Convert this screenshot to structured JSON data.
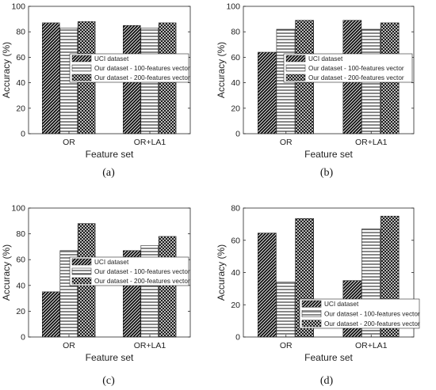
{
  "chart_data": [
    {
      "type": "bar",
      "caption": "(a)",
      "categories": [
        "OR",
        "OR+LA1"
      ],
      "series": [
        {
          "name": "UCI dataset",
          "values": [
            87,
            85
          ]
        },
        {
          "name": "Our dataset - 100-features vector",
          "values": [
            83,
            83
          ]
        },
        {
          "name": "Our dataset - 200-features vector",
          "values": [
            88,
            87
          ]
        }
      ],
      "xlabel": "Feature set",
      "ylabel": "Accuracy (%)",
      "ylim": [
        0,
        100
      ],
      "yticks": [
        0,
        20,
        40,
        60,
        80,
        100
      ],
      "legend_placement": "center-right"
    },
    {
      "type": "bar",
      "caption": "(b)",
      "categories": [
        "OR",
        "OR+LA1"
      ],
      "series": [
        {
          "name": "UCI dataset",
          "values": [
            64,
            89
          ]
        },
        {
          "name": "Our dataset - 100-features vector",
          "values": [
            82,
            82
          ]
        },
        {
          "name": "Our dataset - 200-features vector",
          "values": [
            89,
            87
          ]
        }
      ],
      "xlabel": "Feature set",
      "ylabel": "Accuracy (%)",
      "ylim": [
        0,
        100
      ],
      "yticks": [
        0,
        20,
        40,
        60,
        80,
        100
      ],
      "legend_placement": "center-right"
    },
    {
      "type": "bar",
      "caption": "(c)",
      "categories": [
        "OR",
        "OR+LA1"
      ],
      "series": [
        {
          "name": "UCI dataset",
          "values": [
            35,
            67
          ]
        },
        {
          "name": "Our dataset - 100-features vector",
          "values": [
            67,
            71
          ]
        },
        {
          "name": "Our dataset - 200-features vector",
          "values": [
            88,
            78
          ]
        }
      ],
      "xlabel": "Feature set",
      "ylabel": "Accuracy (%)",
      "ylim": [
        0,
        100
      ],
      "yticks": [
        0,
        20,
        40,
        60,
        80,
        100
      ],
      "legend_placement": "center-right"
    },
    {
      "type": "bar",
      "caption": "(d)",
      "categories": [
        "OR",
        "OR+LA1"
      ],
      "series": [
        {
          "name": "UCI dataset",
          "values": [
            64.5,
            35
          ]
        },
        {
          "name": "Our dataset - 100-features vector",
          "values": [
            34,
            67
          ]
        },
        {
          "name": "Our dataset - 200-features vector",
          "values": [
            73.5,
            75
          ]
        }
      ],
      "xlabel": "Feature set",
      "ylabel": "Accuracy (%)",
      "ylim": [
        0,
        80
      ],
      "yticks": [
        0,
        20,
        40,
        60,
        80
      ],
      "legend_placement": "bottom-right"
    }
  ],
  "colors": {
    "axis": "#262626",
    "bar_fill": "#1a1a1a",
    "background": "#ffffff"
  },
  "series_patterns": [
    "diagonal-hatch",
    "horizontal-lines",
    "crosshatch"
  ]
}
